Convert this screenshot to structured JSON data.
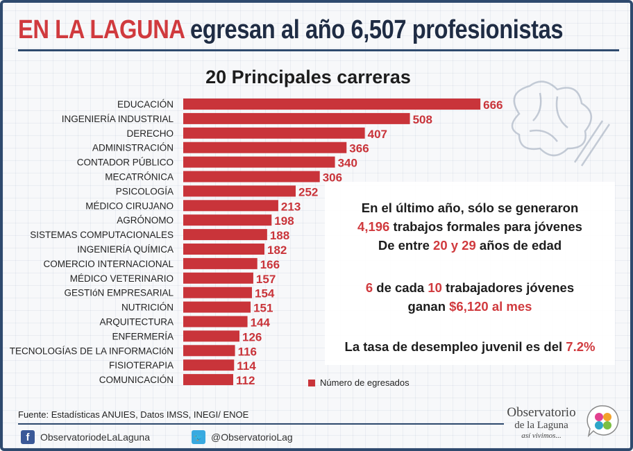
{
  "header": {
    "title_highlight": "EN LA LAGUNA",
    "title_rest": "egresan al año 6,507 profesionistas"
  },
  "chart_data": {
    "type": "bar",
    "orientation": "horizontal",
    "title": "20 Principales carreras",
    "categories": [
      "EDUCACIÓN",
      "INGENIERÍA INDUSTRIAL",
      "DERECHO",
      "ADMINISTRACIÓN",
      "CONTADOR PÚBLICO",
      "MECATRÓNICA",
      "PSICOLOGÍA",
      "MÉDICO CIRUJANO",
      "AGRÓNOMO",
      "SISTEMAS COMPUTACIONALES",
      "INGENIERÍA QUÍMICA",
      "COMERCIO INTERNACIONAL",
      "MÉDICO VETERINARIO",
      "GESTIóN EMPRESARIAL",
      "NUTRICIÓN",
      "ARQUITECTURA",
      "ENFERMERÍA",
      "TECNOLOGÍAS DE LA INFORMACIóN",
      "FISIOTERAPIA",
      "COMUNICACIÓN"
    ],
    "series": [
      {
        "name": "Número de egresados",
        "values": [
          666,
          508,
          407,
          366,
          340,
          306,
          252,
          213,
          198,
          188,
          182,
          166,
          157,
          154,
          151,
          144,
          126,
          116,
          114,
          112
        ]
      }
    ],
    "xlim": [
      0,
      700
    ],
    "grid": false,
    "legend": "bottom-center",
    "bar_color": "#c9343a"
  },
  "info": {
    "line1": "En el último año, sólo se generaron",
    "line2_num": "4,196",
    "line2_rest": " trabajos formales para jóvenes",
    "line3_a": "De entre ",
    "line3_num": "20 y 29",
    "line3_b": " años de edad",
    "line4_a": "6",
    "line4_b": " de cada ",
    "line4_c": "10",
    "line4_d": " trabajadores jóvenes",
    "line5_a": "ganan ",
    "line5_num": "$6,120 al mes",
    "line6_a": "La tasa de desempleo juvenil es del ",
    "line6_num": "7.2%"
  },
  "footer": {
    "source": "Fuente: Estadísticas ANUIES, Datos IMSS, INEGI/ ENOE",
    "facebook": "ObservatoriodeLaLaguna",
    "twitter": "@ObservatorioLag",
    "brand_line1": "Observatorio",
    "brand_line2": "de la Laguna",
    "brand_tagline": "así vivimos..."
  },
  "colors": {
    "accent_red": "#d03a3e",
    "navy": "#2f4a6e",
    "facebook_icon": "#3b5998",
    "twitter_icon": "#39a9e0"
  },
  "icons": [
    "facebook-icon",
    "twitter-icon",
    "brain-doodle",
    "observatorio-logo"
  ]
}
